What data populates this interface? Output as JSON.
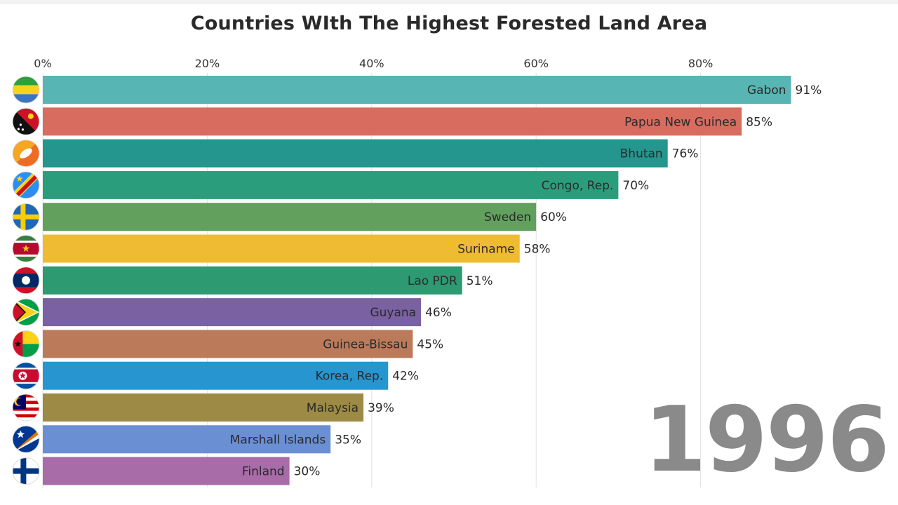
{
  "header": {
    "title": "Countries WIth The Highest Forested Land Area"
  },
  "year_label": "1996",
  "chart_data": {
    "type": "bar",
    "orientation": "horizontal",
    "title": "Countries WIth The Highest Forested Land Area",
    "xlim": [
      0,
      100
    ],
    "x_ticks": [
      0,
      20,
      40,
      60,
      80
    ],
    "x_tick_labels": [
      "0%",
      "20%",
      "40%",
      "60%",
      "80%"
    ],
    "x_axis_position": "top",
    "grid": true,
    "categories": [
      "Gabon",
      "Papua New Guinea",
      "Bhutan",
      "Congo, Rep.",
      "Sweden",
      "Suriname",
      "Lao PDR",
      "Guyana",
      "Guinea-Bissau",
      "Korea, Rep.",
      "Malaysia",
      "Marshall Islands",
      "Finland"
    ],
    "values": [
      91,
      85,
      76,
      70,
      60,
      58,
      51,
      46,
      45,
      42,
      39,
      35,
      30
    ],
    "value_labels": [
      "91%",
      "85%",
      "76%",
      "70%",
      "60%",
      "58%",
      "51%",
      "46%",
      "45%",
      "42%",
      "39%",
      "35%",
      "30%"
    ],
    "bar_colors": [
      "#57b5b3",
      "#d76c5f",
      "#24968e",
      "#2a9e7c",
      "#62a05e",
      "#efbb32",
      "#2d9a72",
      "#7a61a2",
      "#bb7b5a",
      "#2795d0",
      "#9d8a44",
      "#6a8fd2",
      "#a86ca8"
    ],
    "flag_icons": [
      "gabon-flag-icon",
      "papua-new-guinea-flag-icon",
      "bhutan-flag-icon",
      "congo-flag-icon",
      "sweden-flag-icon",
      "suriname-flag-icon",
      "lao-flag-icon",
      "guyana-flag-icon",
      "guinea-bissau-flag-icon",
      "korea-flag-icon",
      "malaysia-flag-icon",
      "marshall-islands-flag-icon",
      "finland-flag-icon"
    ]
  }
}
